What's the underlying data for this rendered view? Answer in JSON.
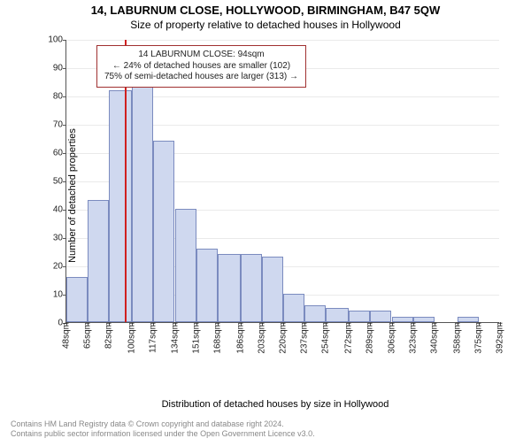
{
  "titles": {
    "main": "14, LABURNUM CLOSE, HOLLYWOOD, BIRMINGHAM, B47 5QW",
    "sub": "Size of property relative to detached houses in Hollywood"
  },
  "chart": {
    "type": "histogram",
    "yaxis": {
      "title": "Number of detached properties",
      "min": 0,
      "max": 100,
      "tick_step": 10,
      "grid_color": "#888888"
    },
    "xaxis": {
      "title": "Distribution of detached houses by size in Hollywood",
      "unit_suffix": "sqm",
      "bin_edges": [
        48,
        65,
        82,
        100,
        117,
        134,
        151,
        168,
        186,
        203,
        220,
        237,
        254,
        272,
        289,
        306,
        323,
        340,
        358,
        375,
        392
      ]
    },
    "bars": {
      "fill_color": "#cfd8ef",
      "stroke_color": "#7b8bbf",
      "values": [
        16,
        43,
        82,
        85,
        64,
        40,
        26,
        24,
        24,
        23,
        10,
        6,
        5,
        4,
        4,
        2,
        2,
        0,
        2,
        0
      ]
    },
    "reference_line": {
      "value_sqm": 94,
      "color": "#d02020"
    },
    "annotation": {
      "box_border_color": "#a03030",
      "lines": [
        "14 LABURNUM CLOSE: 94sqm",
        "← 24% of detached houses are smaller (102)",
        "75% of semi-detached houses are larger (313) →"
      ]
    },
    "background_color": "#ffffff"
  },
  "copyright": {
    "line1": "Contains HM Land Registry data © Crown copyright and database right 2024.",
    "line2": "Contains public sector information licensed under the Open Government Licence v3.0."
  }
}
